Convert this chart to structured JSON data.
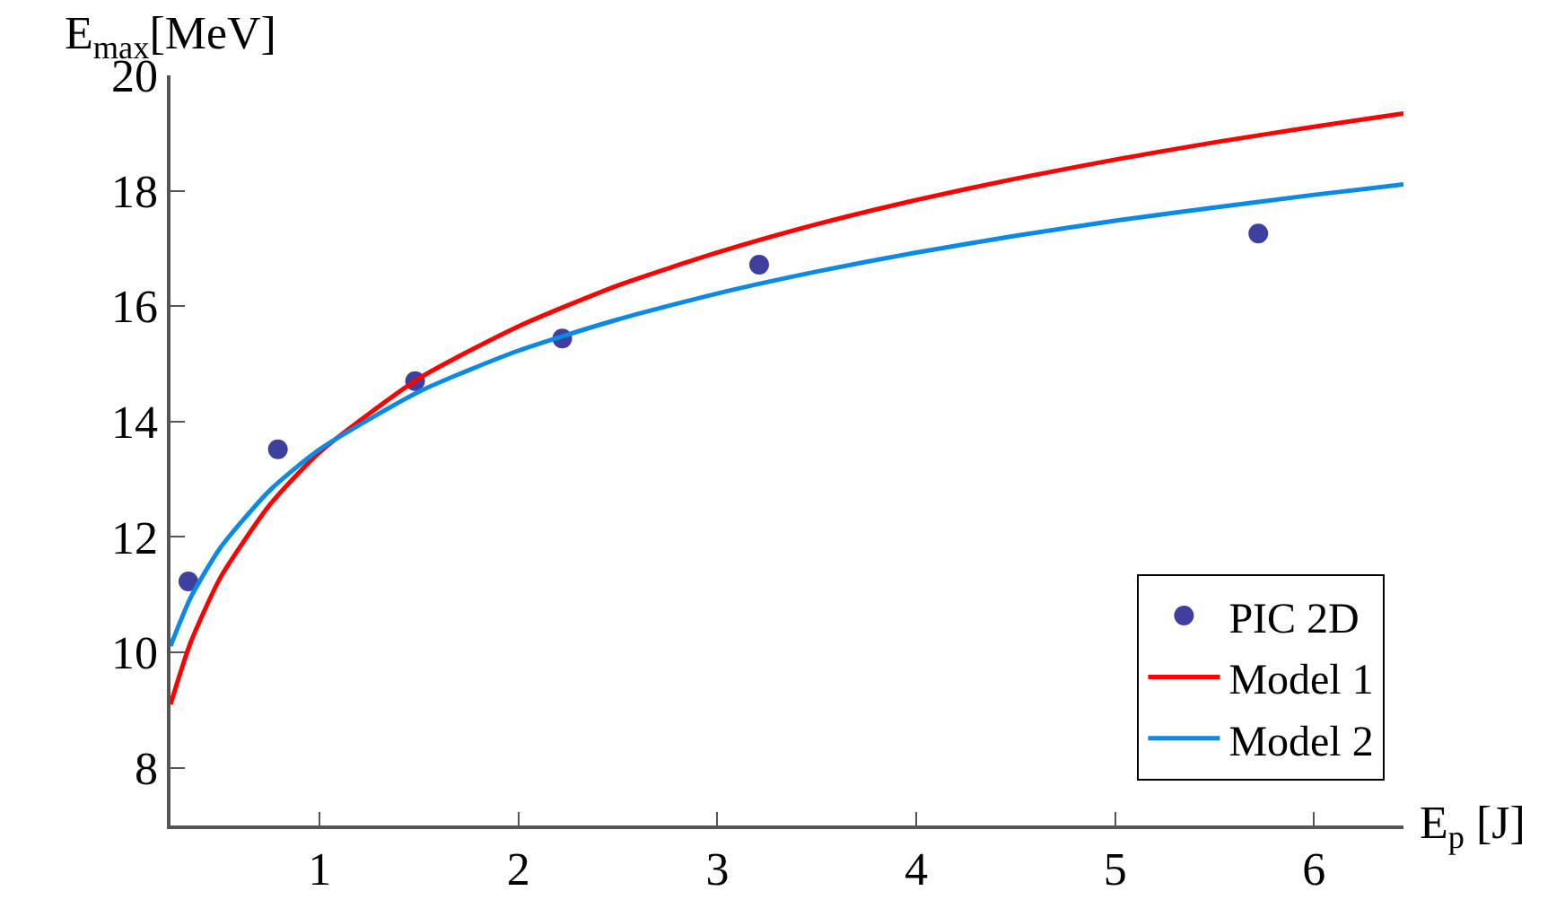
{
  "chart_data": {
    "type": "scatter",
    "xlabel": "E$_{p}$ [J]",
    "ylabel": "E$_{max}$[MeV]",
    "xlim": [
      0.25,
      6.45
    ],
    "ylim": [
      7,
      20
    ],
    "xticks": [
      1,
      2,
      3,
      4,
      5,
      6
    ],
    "yticks": [
      8,
      10,
      12,
      14,
      16,
      18,
      20
    ],
    "legend": "bottom right",
    "series": [
      {
        "name": "PIC 2D",
        "marker": "circle",
        "color": "#3f3f9f",
        "x": [
          0.34,
          0.79,
          1.48,
          2.22,
          3.21,
          5.72
        ],
        "values": [
          11.23,
          13.52,
          14.7,
          15.44,
          16.72,
          17.26
        ]
      },
      {
        "name": "Model 1",
        "type": "line",
        "color": "#ff0000",
        "x": [
          0.25,
          0.35,
          0.5,
          0.75,
          1,
          1.5,
          2,
          2.5,
          3,
          3.5,
          4,
          4.5,
          5,
          5.5,
          6,
          6.45
        ],
        "values": [
          9.1,
          10.16,
          11.29,
          12.56,
          13.47,
          14.75,
          15.65,
          16.36,
          16.93,
          17.42,
          17.84,
          18.21,
          18.54,
          18.84,
          19.11,
          19.34
        ]
      },
      {
        "name": "Model 2",
        "type": "line",
        "color": "#0a8ae6",
        "x": [
          0.25,
          0.35,
          0.5,
          0.75,
          1,
          1.5,
          2,
          2.5,
          3,
          3.5,
          4,
          4.5,
          5,
          5.5,
          6,
          6.45
        ],
        "values": [
          10.11,
          10.94,
          11.81,
          12.81,
          13.52,
          14.52,
          15.23,
          15.77,
          16.22,
          16.6,
          16.93,
          17.22,
          17.48,
          17.71,
          17.93,
          18.11
        ]
      }
    ]
  }
}
